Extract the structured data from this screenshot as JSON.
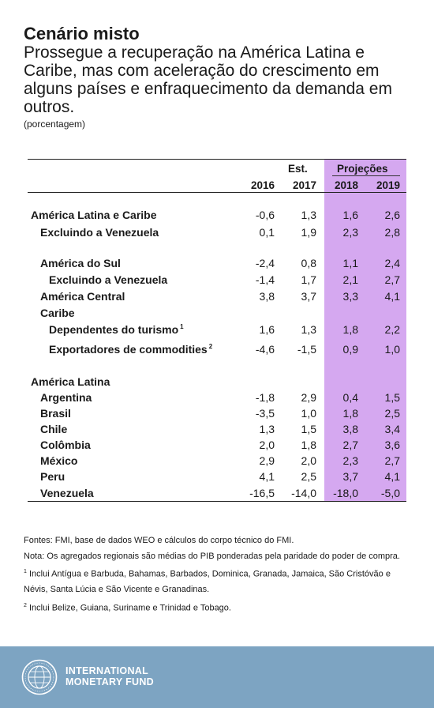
{
  "header": {
    "title": "Cenário misto",
    "subtitle": "Prossegue a recuperação na América Latina e Caribe, mas com aceleração do crescimento em alguns países e enfraquecimento da demanda em outros.",
    "unit": "(porcentagem)"
  },
  "chart_data": {
    "type": "table",
    "column_groups": {
      "estimate": "Est.",
      "projections": "Projeções"
    },
    "columns": [
      "2016",
      "2017",
      "2018",
      "2019"
    ],
    "rows": [
      {
        "label": "América Latina e Caribe",
        "level": 0,
        "values": [
          "-0,6",
          "1,3",
          "1,6",
          "2,6"
        ]
      },
      {
        "label": "Excluindo a Venezuela",
        "level": 1,
        "values": [
          "0,1",
          "1,9",
          "2,3",
          "2,8"
        ]
      },
      {
        "label": "América do Sul",
        "level": 1,
        "values": [
          "-2,4",
          "0,8",
          "1,1",
          "2,4"
        ]
      },
      {
        "label": "Excluindo a Venezuela",
        "level": 2,
        "values": [
          "-1,4",
          "1,7",
          "2,1",
          "2,7"
        ]
      },
      {
        "label": "América Central",
        "level": 1,
        "values": [
          "3,8",
          "3,7",
          "3,3",
          "4,1"
        ]
      },
      {
        "label": "Caribe",
        "level": 1,
        "values": []
      },
      {
        "label": "Dependentes do turismo",
        "level": 2,
        "footnote": "1",
        "values": [
          "1,6",
          "1,3",
          "1,8",
          "2,2"
        ]
      },
      {
        "label": "Exportadores de commodities",
        "level": 2,
        "footnote": "2",
        "values": [
          "-4,6",
          "-1,5",
          "0,9",
          "1,0"
        ]
      },
      {
        "label": "América Latina",
        "level": 0,
        "values": []
      },
      {
        "label": "Argentina",
        "level": 1,
        "values": [
          "-1,8",
          "2,9",
          "0,4",
          "1,5"
        ]
      },
      {
        "label": "Brasil",
        "level": 1,
        "values": [
          "-3,5",
          "1,0",
          "1,8",
          "2,5"
        ]
      },
      {
        "label": "Chile",
        "level": 1,
        "values": [
          "1,3",
          "1,5",
          "3,8",
          "3,4"
        ]
      },
      {
        "label": "Colômbia",
        "level": 1,
        "values": [
          "2,0",
          "1,8",
          "2,7",
          "3,6"
        ]
      },
      {
        "label": "México",
        "level": 1,
        "values": [
          "2,9",
          "2,0",
          "2,3",
          "2,7"
        ]
      },
      {
        "label": "Peru",
        "level": 1,
        "values": [
          "4,1",
          "2,5",
          "3,7",
          "4,1"
        ]
      },
      {
        "label": "Venezuela",
        "level": 1,
        "values": [
          "-16,5",
          "-14,0",
          "-18,0",
          "-5,0"
        ]
      }
    ]
  },
  "notes": {
    "sources": "Fontes: FMI, base de dados WEO e cálculos do corpo técnico do FMI.",
    "note": "Nota: Os agregados regionais são médias do PIB ponderadas pela paridade do poder de compra.",
    "fn1_marker": "1",
    "fn1": "Inclui Antígua e Barbuda, Bahamas, Barbados, Dominica, Granada, Jamaica, São Cristóvão e Névis, Santa Lúcia e São Vicente e Granadinas.",
    "fn2_marker": "2",
    "fn2": "Inclui Belize, Guiana, Suriname e Trinidad e Tobago."
  },
  "footer": {
    "org_line1": "INTERNATIONAL",
    "org_line2": "MONETARY FUND",
    "seal_icon": "imf-seal-icon",
    "bg_color": "#7da4c2",
    "projection_color": "#d5a8f0"
  }
}
